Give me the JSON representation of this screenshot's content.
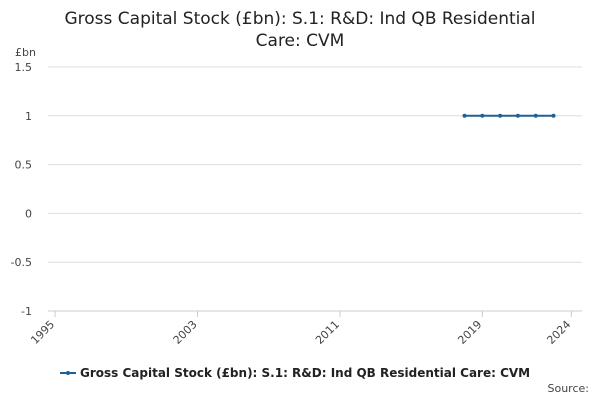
{
  "chart_data": {
    "type": "line",
    "title": "Gross Capital Stock (£bn): S.1: R&D: Ind QB Residential Care: CVM",
    "y_label": "£bn",
    "source": "Source:",
    "x": [
      2018,
      2019,
      2020,
      2021,
      2022,
      2023
    ],
    "series": [
      {
        "name": "Gross Capital Stock (£bn): S.1: R&D: Ind QB Residential Care: CVM",
        "color": "#206095",
        "values": [
          1,
          1,
          1,
          1,
          1,
          1
        ]
      }
    ],
    "xlim": [
      1994.6,
      2024.6
    ],
    "xticks": [
      1995,
      2003,
      2011,
      2019,
      2024
    ],
    "ylim": [
      -1,
      1.5
    ],
    "yticks": [
      -1,
      -0.5,
      0,
      0.5,
      1,
      1.5
    ],
    "grid": true
  }
}
